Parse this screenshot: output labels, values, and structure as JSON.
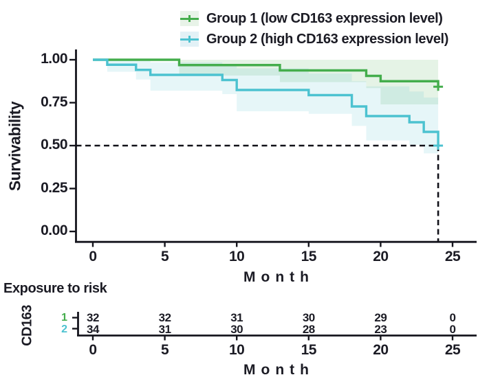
{
  "legend": {
    "items": [
      {
        "label": "Group 1 (low CD163 expression level)",
        "color": "#44ad4c",
        "key_fill": "#e8f3e8"
      },
      {
        "label": "Group 2 (high CD163 expression level)",
        "color": "#4cc2d0",
        "key_fill": "#e2f1f6"
      }
    ]
  },
  "chart_data": {
    "type": "line",
    "subtype": "kaplan-meier-step",
    "xlabel": "Month",
    "ylabel": "Survivability",
    "x_ticks": [
      0,
      5,
      10,
      15,
      20,
      25
    ],
    "y_ticks": [
      "1.00",
      "0.75",
      "0.50",
      "0.25",
      "0.00"
    ],
    "y_tick_values": [
      1.0,
      0.75,
      0.5,
      0.25,
      0.0
    ],
    "xlim": [
      0,
      26.5
    ],
    "ylim": [
      0,
      1
    ],
    "grid": false,
    "legend_position": "top",
    "reference_lines": {
      "horizontal_y": 0.5,
      "vertical_x": 24,
      "style": "dashed",
      "color": "#101018"
    },
    "end_of_follow_up_month": 24,
    "series": [
      {
        "name": "Group 1 (low CD163 expression level)",
        "color": "#44ad4c",
        "ci_color": "rgba(68,173,76,0.14)",
        "steps": [
          [
            0,
            1.0
          ],
          [
            6,
            0.969
          ],
          [
            13,
            0.938
          ],
          [
            19,
            0.906
          ],
          [
            20,
            0.875
          ],
          [
            24,
            0.843
          ]
        ],
        "censor_marks": [
          [
            24,
            0.843
          ]
        ],
        "ci_upper": [
          [
            6,
            1.0
          ]
        ],
        "ci_lower": [
          [
            6,
            0.908
          ],
          [
            13,
            0.87
          ],
          [
            19,
            0.835
          ],
          [
            20,
            0.74
          ]
        ]
      },
      {
        "name": "Group 2 (high CD163 expression level)",
        "color": "#4cc2d0",
        "ci_color": "rgba(76,194,208,0.14)",
        "steps": [
          [
            0,
            1.0
          ],
          [
            1,
            0.971
          ],
          [
            3,
            0.941
          ],
          [
            4,
            0.912
          ],
          [
            9,
            0.882
          ],
          [
            10,
            0.824
          ],
          [
            15,
            0.794
          ],
          [
            18,
            0.728
          ],
          [
            19,
            0.672
          ],
          [
            22,
            0.636
          ],
          [
            23,
            0.58
          ],
          [
            24,
            0.5
          ]
        ],
        "censor_marks": [
          [
            24,
            0.5
          ]
        ],
        "ci_upper": [
          [
            1,
            1.0
          ],
          [
            4,
            0.985
          ],
          [
            9,
            0.968
          ],
          [
            10,
            0.95
          ],
          [
            15,
            0.92
          ],
          [
            18,
            0.875
          ],
          [
            19,
            0.845
          ],
          [
            22,
            0.815
          ],
          [
            23,
            0.78
          ],
          [
            24,
            0.73
          ]
        ],
        "ci_lower": [
          [
            1,
            0.93
          ],
          [
            3,
            0.885
          ],
          [
            4,
            0.82
          ],
          [
            9,
            0.8
          ],
          [
            10,
            0.7
          ],
          [
            15,
            0.685
          ],
          [
            18,
            0.615
          ],
          [
            19,
            0.53
          ],
          [
            22,
            0.505
          ],
          [
            23,
            0.455
          ],
          [
            24,
            0.4
          ]
        ]
      }
    ]
  },
  "risk_table": {
    "title": "Exposure to risk",
    "group_axis_label": "CD163",
    "xlabel": "Month",
    "x_ticks": [
      0,
      5,
      10,
      15,
      20,
      25
    ],
    "rows": [
      {
        "label": "1",
        "color": "#44ad4c",
        "values": [
          32,
          32,
          31,
          30,
          29,
          0
        ]
      },
      {
        "label": "2",
        "color": "#4cc2d0",
        "values": [
          34,
          31,
          30,
          28,
          23,
          0
        ]
      }
    ]
  }
}
